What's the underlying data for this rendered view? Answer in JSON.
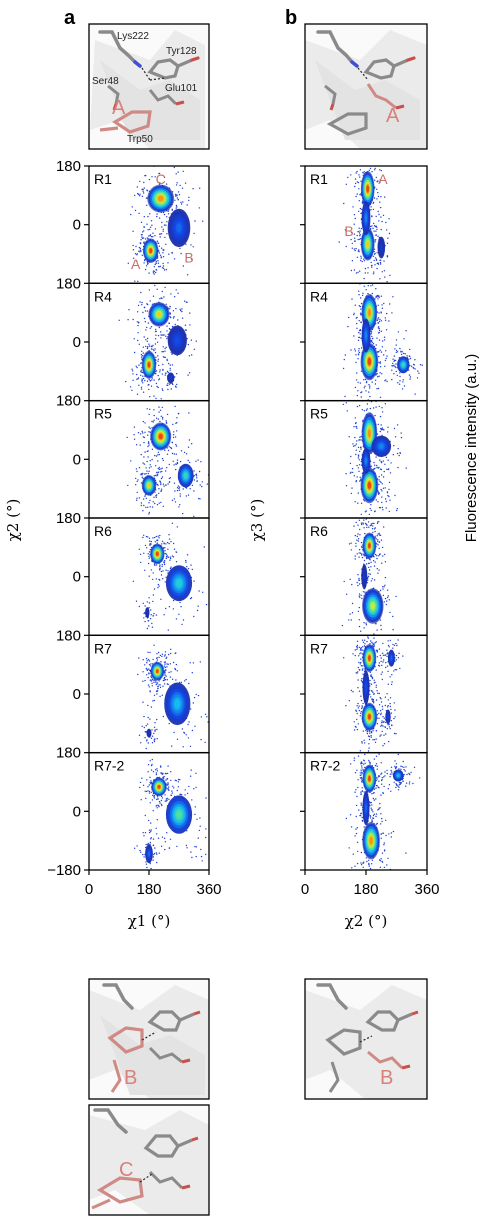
{
  "figure": {
    "panel_a_letter": "a",
    "panel_b_letter": "b",
    "colorbar_label": "Fluorescence intensity (a.u.)"
  },
  "structures": {
    "top_a": {
      "labels": [
        "Lys222",
        "Tyr128",
        "Ser48",
        "Glu101",
        "Trp50"
      ],
      "state": "A"
    },
    "top_b": {
      "state": "A"
    },
    "bottom_a_1": {
      "state": "B"
    },
    "bottom_a_2": {
      "state": "C"
    },
    "bottom_b": {
      "state": "B"
    }
  },
  "chart_data": [
    {
      "type": "heatmap",
      "panel": "a",
      "xlabel": "χ1 (°)",
      "ylabel": "χ2 (°)",
      "xlim": [
        0,
        360
      ],
      "ylim": [
        -180,
        180
      ],
      "x_ticks": [
        "0",
        "180",
        "360"
      ],
      "y_ticks": [
        "180",
        "0",
        "−180"
      ],
      "state_labels": [
        {
          "text": "A",
          "x": 140,
          "y": -120
        },
        {
          "text": "B",
          "x": 300,
          "y": -100
        },
        {
          "text": "C",
          "x": 215,
          "y": 140
        }
      ],
      "runs": [
        {
          "name": "R1",
          "clusters": [
            {
              "x": 185,
              "y": -80,
              "sx": 16,
              "sy": 26,
              "w": 1.0
            },
            {
              "x": 215,
              "y": 80,
              "sx": 28,
              "sy": 30,
              "w": 0.9
            },
            {
              "x": 270,
              "y": -10,
              "sx": 26,
              "sy": 45,
              "w": 0.25
            }
          ]
        },
        {
          "name": "R4",
          "clusters": [
            {
              "x": 180,
              "y": -70,
              "sx": 15,
              "sy": 30,
              "w": 1.0
            },
            {
              "x": 210,
              "y": 85,
              "sx": 22,
              "sy": 26,
              "w": 0.8
            },
            {
              "x": 265,
              "y": 5,
              "sx": 22,
              "sy": 35,
              "w": 0.2
            },
            {
              "x": 245,
              "y": -110,
              "sx": 10,
              "sy": 15,
              "w": 0.12
            }
          ]
        },
        {
          "name": "R5",
          "clusters": [
            {
              "x": 180,
              "y": -80,
              "sx": 15,
              "sy": 22,
              "w": 0.8
            },
            {
              "x": 215,
              "y": 70,
              "sx": 22,
              "sy": 30,
              "w": 1.0
            },
            {
              "x": 290,
              "y": -50,
              "sx": 18,
              "sy": 28,
              "w": 0.5
            }
          ]
        },
        {
          "name": "R6",
          "clusters": [
            {
              "x": 205,
              "y": 70,
              "sx": 15,
              "sy": 22,
              "w": 1.0
            },
            {
              "x": 270,
              "y": -20,
              "sx": 30,
              "sy": 42,
              "w": 0.45
            },
            {
              "x": 175,
              "y": -110,
              "sx": 7,
              "sy": 18,
              "w": 0.08
            }
          ]
        },
        {
          "name": "R7",
          "clusters": [
            {
              "x": 205,
              "y": 70,
              "sx": 14,
              "sy": 20,
              "w": 1.0
            },
            {
              "x": 265,
              "y": -30,
              "sx": 30,
              "sy": 50,
              "w": 0.4
            },
            {
              "x": 180,
              "y": -120,
              "sx": 8,
              "sy": 15,
              "w": 0.08
            }
          ]
        },
        {
          "name": "R7-2",
          "clusters": [
            {
              "x": 210,
              "y": 75,
              "sx": 16,
              "sy": 20,
              "w": 1.0
            },
            {
              "x": 270,
              "y": -10,
              "sx": 30,
              "sy": 45,
              "w": 0.55
            },
            {
              "x": 180,
              "y": -130,
              "sx": 9,
              "sy": 22,
              "w": 0.25
            }
          ]
        }
      ]
    },
    {
      "type": "heatmap",
      "panel": "b",
      "xlabel": "χ2 (°)",
      "ylabel": "χ3 (°)",
      "xlim": [
        0,
        360
      ],
      "ylim": [
        -180,
        180
      ],
      "x_ticks": [
        "0",
        "180",
        "360"
      ],
      "state_labels": [
        {
          "text": "A",
          "x": 230,
          "y": 140
        },
        {
          "text": "B",
          "x": 130,
          "y": -20
        }
      ],
      "runs": [
        {
          "name": "R1",
          "clusters": [
            {
              "x": 185,
              "y": 110,
              "sx": 14,
              "sy": 38,
              "w": 1.0
            },
            {
              "x": 185,
              "y": -60,
              "sx": 14,
              "sy": 35,
              "w": 0.8
            },
            {
              "x": 180,
              "y": 20,
              "sx": 10,
              "sy": 40,
              "w": 0.3
            },
            {
              "x": 225,
              "y": -70,
              "sx": 10,
              "sy": 30,
              "w": 0.12
            }
          ]
        },
        {
          "name": "R4",
          "clusters": [
            {
              "x": 190,
              "y": 90,
              "sx": 16,
              "sy": 40,
              "w": 0.9
            },
            {
              "x": 190,
              "y": -60,
              "sx": 18,
              "sy": 40,
              "w": 1.0
            },
            {
              "x": 290,
              "y": -70,
              "sx": 14,
              "sy": 20,
              "w": 0.5
            },
            {
              "x": 180,
              "y": 20,
              "sx": 10,
              "sy": 40,
              "w": 0.3
            }
          ]
        },
        {
          "name": "R5",
          "clusters": [
            {
              "x": 190,
              "y": 80,
              "sx": 16,
              "sy": 45,
              "w": 0.9
            },
            {
              "x": 190,
              "y": -80,
              "sx": 18,
              "sy": 38,
              "w": 1.0
            },
            {
              "x": 225,
              "y": 40,
              "sx": 22,
              "sy": 25,
              "w": 0.3
            },
            {
              "x": 180,
              "y": -5,
              "sx": 10,
              "sy": 30,
              "w": 0.3
            }
          ]
        },
        {
          "name": "R6",
          "clusters": [
            {
              "x": 190,
              "y": 95,
              "sx": 14,
              "sy": 28,
              "w": 1.0
            },
            {
              "x": 200,
              "y": -90,
              "sx": 22,
              "sy": 38,
              "w": 0.7
            },
            {
              "x": 175,
              "y": 0,
              "sx": 8,
              "sy": 35,
              "w": 0.12
            }
          ]
        },
        {
          "name": "R7",
          "clusters": [
            {
              "x": 190,
              "y": 110,
              "sx": 14,
              "sy": 30,
              "w": 1.0
            },
            {
              "x": 190,
              "y": -70,
              "sx": 16,
              "sy": 30,
              "w": 1.0
            },
            {
              "x": 255,
              "y": 110,
              "sx": 8,
              "sy": 20,
              "w": 0.25
            },
            {
              "x": 245,
              "y": -70,
              "sx": 7,
              "sy": 20,
              "w": 0.15
            },
            {
              "x": 180,
              "y": 20,
              "sx": 8,
              "sy": 40,
              "w": 0.2
            }
          ]
        },
        {
          "name": "R7-2",
          "clusters": [
            {
              "x": 190,
              "y": 100,
              "sx": 14,
              "sy": 30,
              "w": 1.0
            },
            {
              "x": 195,
              "y": -90,
              "sx": 18,
              "sy": 40,
              "w": 0.9
            },
            {
              "x": 275,
              "y": 110,
              "sx": 12,
              "sy": 14,
              "w": 0.4
            },
            {
              "x": 180,
              "y": 10,
              "sx": 8,
              "sy": 40,
              "w": 0.25
            }
          ]
        }
      ]
    }
  ]
}
